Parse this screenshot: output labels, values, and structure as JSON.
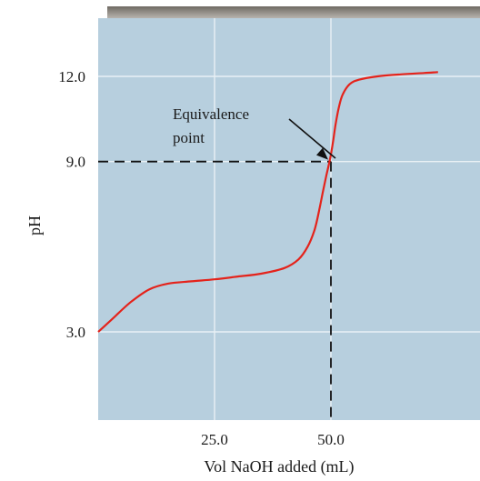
{
  "chart_data": {
    "type": "line",
    "title": "",
    "xlabel": "Vol NaOH added (mL)",
    "ylabel": "pH",
    "xlim": [
      0,
      75
    ],
    "ylim": [
      0,
      14
    ],
    "x_ticks": [
      25.0,
      50.0
    ],
    "x_tick_labels": [
      "25.0",
      "50.0"
    ],
    "y_ticks": [
      3.0,
      9.0,
      12.0
    ],
    "y_tick_labels": [
      "3.0",
      "9.0",
      "12.0"
    ],
    "grid": true,
    "legend": "none",
    "colors": {
      "plot_background": "#b7cfde",
      "gridline": "#e9f0f5",
      "curve": "#e4231b",
      "dashed_line": "#111111",
      "top_bar": "#8c877f"
    },
    "series": [
      {
        "x": [
          0.0,
          3.0,
          7.0,
          11.0,
          15.0,
          20.0,
          25.0,
          30.0,
          35.0,
          40.0,
          43.0,
          45.0,
          46.5,
          47.5,
          48.3,
          49.0,
          49.5,
          50.0,
          50.5,
          51.0,
          51.7,
          52.5,
          54.0,
          56.0,
          60.0,
          65.0,
          70.0,
          73.0
        ],
        "y": [
          3.0,
          3.45,
          4.05,
          4.5,
          4.7,
          4.78,
          4.85,
          4.95,
          5.05,
          5.25,
          5.55,
          6.0,
          6.6,
          7.3,
          7.95,
          8.5,
          8.85,
          9.25,
          9.75,
          10.3,
          10.9,
          11.35,
          11.72,
          11.88,
          12.0,
          12.07,
          12.12,
          12.15
        ]
      }
    ],
    "annotations": [
      {
        "text_lines": [
          "Equivalence",
          "point"
        ],
        "x": 50.0,
        "y": 9.0
      }
    ]
  }
}
